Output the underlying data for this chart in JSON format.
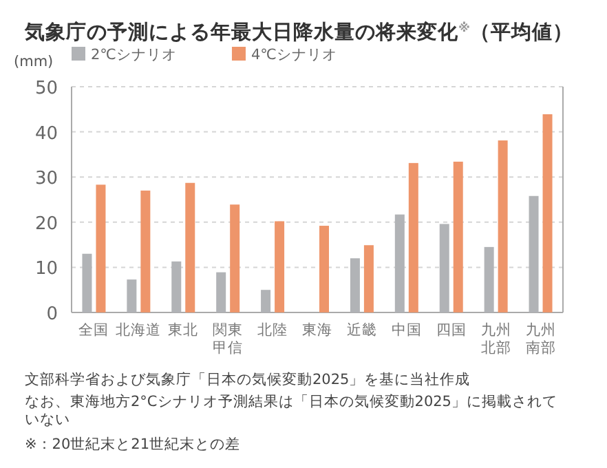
{
  "chart_data": {
    "type": "bar",
    "title": "気象庁の予測による年最大日降水量の将来変化$^{※}$（平均値）",
    "ylabel": "(mm)",
    "categories": [
      "全国",
      "北海道",
      "東北",
      "関東甲信",
      "北陸",
      "東海",
      "近畿",
      "中国",
      "四国",
      "九州北部",
      "九州南部"
    ],
    "series": [
      {
        "name": "2℃シナリオ",
        "color": "#b1b3b6",
        "values": [
          13.0,
          7.3,
          11.3,
          8.9,
          5.0,
          null,
          12.0,
          21.7,
          19.6,
          14.5,
          25.8
        ]
      },
      {
        "name": "4℃シナリオ",
        "color": "#ee956a",
        "values": [
          28.3,
          27.0,
          28.7,
          23.9,
          20.2,
          19.2,
          14.9,
          33.1,
          33.4,
          38.1,
          43.9
        ]
      }
    ],
    "ylim": [
      0,
      50
    ],
    "yticks": [
      0,
      10,
      20,
      30,
      40,
      50
    ],
    "grid": "y",
    "legend": "top left",
    "annotations": [
      "文部科学省および気象庁「日本の気候変動2025」を基に当社作成",
      "なお、東海地方2°Cシナリオ予測結果は「日本の気候変動2025」に掲載されていない",
      "※：20世紀末と21世紀末との差"
    ]
  }
}
